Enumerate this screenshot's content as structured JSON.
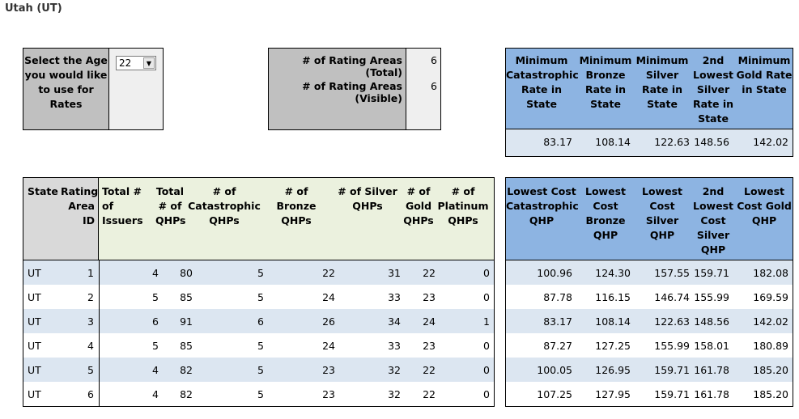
{
  "page_title": "Utah (UT)",
  "age_selector": {
    "label_lines": [
      "Select the Age",
      "you would like",
      "to use for",
      "Rates"
    ],
    "value": "22",
    "arrow": "▼"
  },
  "rating_areas": {
    "total_label": "# of Rating Areas (Total)",
    "total_value": "6",
    "visible_label": "# of Rating Areas (Visible)",
    "visible_value": "6"
  },
  "minimum_rates": {
    "headers": [
      [
        "Minimum",
        "Catastrophic",
        "Rate in",
        "State"
      ],
      [
        "Minimum",
        "Bronze",
        "Rate in",
        "State"
      ],
      [
        "Minimum",
        "Silver",
        "Rate in",
        "State"
      ],
      [
        "2nd",
        "Lowest",
        "Silver",
        "Rate in",
        "State"
      ],
      [
        "Minimum",
        "Gold Rate",
        "in State"
      ]
    ],
    "values": [
      "83.17",
      "108.14",
      "122.63",
      "148.56",
      "142.02"
    ]
  },
  "table": {
    "left_headers": [
      [
        "State"
      ],
      [
        "Rating",
        "Area",
        "ID"
      ],
      [
        "Total #",
        "of",
        "Issuers"
      ],
      [
        "Total",
        "# of",
        "QHPs"
      ],
      [
        "# of",
        "Catastrophic",
        "QHPs"
      ],
      [
        "# of Bronze",
        "QHPs"
      ],
      [
        "# of Silver",
        "QHPs"
      ],
      [
        "# of",
        "Gold",
        "QHPs"
      ],
      [
        "# of",
        "Platinum",
        "QHPs"
      ]
    ],
    "right_headers": [
      [
        "Lowest Cost",
        "Catastrophic",
        "QHP"
      ],
      [
        "Lowest",
        "Cost",
        "Bronze",
        "QHP"
      ],
      [
        "Lowest",
        "Cost",
        "Silver",
        "QHP"
      ],
      [
        "2nd",
        "Lowest",
        "Cost",
        "Silver",
        "QHP"
      ],
      [
        "Lowest",
        "Cost Gold",
        "QHP"
      ]
    ],
    "rows": [
      {
        "state": "UT",
        "area": "1",
        "issuers": "4",
        "total": "80",
        "cat": "5",
        "bronze": "22",
        "silver": "31",
        "gold": "22",
        "platinum": "0",
        "low_cat": "100.96",
        "low_bronze": "124.30",
        "low_silver": "157.55",
        "second_silver": "159.71",
        "low_gold": "182.08"
      },
      {
        "state": "UT",
        "area": "2",
        "issuers": "5",
        "total": "85",
        "cat": "5",
        "bronze": "24",
        "silver": "33",
        "gold": "23",
        "platinum": "0",
        "low_cat": "87.78",
        "low_bronze": "116.15",
        "low_silver": "146.74",
        "second_silver": "155.99",
        "low_gold": "169.59"
      },
      {
        "state": "UT",
        "area": "3",
        "issuers": "6",
        "total": "91",
        "cat": "6",
        "bronze": "26",
        "silver": "34",
        "gold": "24",
        "platinum": "1",
        "low_cat": "83.17",
        "low_bronze": "108.14",
        "low_silver": "122.63",
        "second_silver": "148.56",
        "low_gold": "142.02"
      },
      {
        "state": "UT",
        "area": "4",
        "issuers": "5",
        "total": "85",
        "cat": "5",
        "bronze": "24",
        "silver": "33",
        "gold": "23",
        "platinum": "0",
        "low_cat": "87.27",
        "low_bronze": "127.25",
        "low_silver": "155.99",
        "second_silver": "158.01",
        "low_gold": "180.89"
      },
      {
        "state": "UT",
        "area": "5",
        "issuers": "4",
        "total": "82",
        "cat": "5",
        "bronze": "23",
        "silver": "32",
        "gold": "22",
        "platinum": "0",
        "low_cat": "100.05",
        "low_bronze": "126.95",
        "low_silver": "159.71",
        "second_silver": "161.78",
        "low_gold": "185.20"
      },
      {
        "state": "UT",
        "area": "6",
        "issuers": "4",
        "total": "82",
        "cat": "5",
        "bronze": "23",
        "silver": "32",
        "gold": "22",
        "platinum": "0",
        "low_cat": "107.25",
        "low_bronze": "127.95",
        "low_silver": "159.71",
        "second_silver": "161.78",
        "low_gold": "185.20"
      }
    ]
  },
  "colors": {
    "blue_header": "#8db4e2",
    "light_blue_row": "#dce6f1",
    "green_header": "#ebf1de",
    "gray_header": "#d9d9d9",
    "input_gray": "#c0c0c0"
  }
}
